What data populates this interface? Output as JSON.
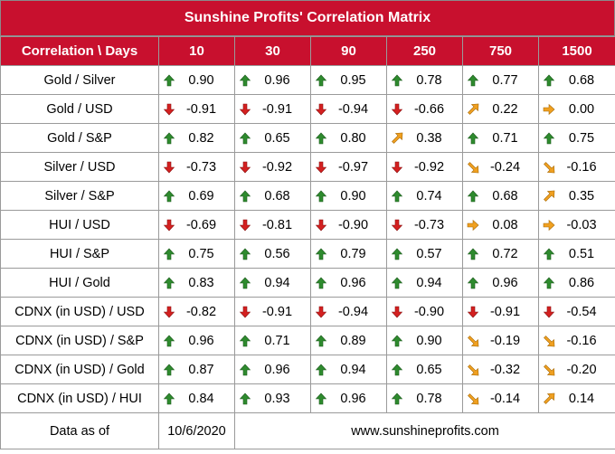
{
  "title": "Sunshine Profits' Correlation Matrix",
  "header": {
    "label": "Correlation \\ Days",
    "days": [
      "10",
      "30",
      "90",
      "250",
      "750",
      "1500"
    ]
  },
  "colors": {
    "accent": "#c8102e",
    "up": "#2e8b2e",
    "down": "#d42020",
    "diagonal": "#f0a020"
  },
  "rows": [
    {
      "label": "Gold / Silver",
      "cells": [
        {
          "icon": "arrow-up-icon",
          "value": "0.90"
        },
        {
          "icon": "arrow-up-icon",
          "value": "0.96"
        },
        {
          "icon": "arrow-up-icon",
          "value": "0.95"
        },
        {
          "icon": "arrow-up-icon",
          "value": "0.78"
        },
        {
          "icon": "arrow-up-icon",
          "value": "0.77"
        },
        {
          "icon": "arrow-up-icon",
          "value": "0.68"
        }
      ]
    },
    {
      "label": "Gold / USD",
      "cells": [
        {
          "icon": "arrow-down-icon",
          "value": "-0.91"
        },
        {
          "icon": "arrow-down-icon",
          "value": "-0.91"
        },
        {
          "icon": "arrow-down-icon",
          "value": "-0.94"
        },
        {
          "icon": "arrow-down-icon",
          "value": "-0.66"
        },
        {
          "icon": "arrow-up-right-icon",
          "value": "0.22"
        },
        {
          "icon": "arrow-right-icon",
          "value": "0.00"
        }
      ]
    },
    {
      "label": "Gold / S&P",
      "cells": [
        {
          "icon": "arrow-up-icon",
          "value": "0.82"
        },
        {
          "icon": "arrow-up-icon",
          "value": "0.65"
        },
        {
          "icon": "arrow-up-icon",
          "value": "0.80"
        },
        {
          "icon": "arrow-up-right-icon",
          "value": "0.38"
        },
        {
          "icon": "arrow-up-icon",
          "value": "0.71"
        },
        {
          "icon": "arrow-up-icon",
          "value": "0.75"
        }
      ]
    },
    {
      "label": "Silver / USD",
      "cells": [
        {
          "icon": "arrow-down-icon",
          "value": "-0.73"
        },
        {
          "icon": "arrow-down-icon",
          "value": "-0.92"
        },
        {
          "icon": "arrow-down-icon",
          "value": "-0.97"
        },
        {
          "icon": "arrow-down-icon",
          "value": "-0.92"
        },
        {
          "icon": "arrow-down-right-icon",
          "value": "-0.24"
        },
        {
          "icon": "arrow-down-right-icon",
          "value": "-0.16"
        }
      ]
    },
    {
      "label": "Silver / S&P",
      "cells": [
        {
          "icon": "arrow-up-icon",
          "value": "0.69"
        },
        {
          "icon": "arrow-up-icon",
          "value": "0.68"
        },
        {
          "icon": "arrow-up-icon",
          "value": "0.90"
        },
        {
          "icon": "arrow-up-icon",
          "value": "0.74"
        },
        {
          "icon": "arrow-up-icon",
          "value": "0.68"
        },
        {
          "icon": "arrow-up-right-icon",
          "value": "0.35"
        }
      ]
    },
    {
      "label": "HUI / USD",
      "cells": [
        {
          "icon": "arrow-down-icon",
          "value": "-0.69"
        },
        {
          "icon": "arrow-down-icon",
          "value": "-0.81"
        },
        {
          "icon": "arrow-down-icon",
          "value": "-0.90"
        },
        {
          "icon": "arrow-down-icon",
          "value": "-0.73"
        },
        {
          "icon": "arrow-right-icon",
          "value": "0.08"
        },
        {
          "icon": "arrow-right-icon",
          "value": "-0.03"
        }
      ]
    },
    {
      "label": "HUI / S&P",
      "cells": [
        {
          "icon": "arrow-up-icon",
          "value": "0.75"
        },
        {
          "icon": "arrow-up-icon",
          "value": "0.56"
        },
        {
          "icon": "arrow-up-icon",
          "value": "0.79"
        },
        {
          "icon": "arrow-up-icon",
          "value": "0.57"
        },
        {
          "icon": "arrow-up-icon",
          "value": "0.72"
        },
        {
          "icon": "arrow-up-icon",
          "value": "0.51"
        }
      ]
    },
    {
      "label": "HUI / Gold",
      "cells": [
        {
          "icon": "arrow-up-icon",
          "value": "0.83"
        },
        {
          "icon": "arrow-up-icon",
          "value": "0.94"
        },
        {
          "icon": "arrow-up-icon",
          "value": "0.96"
        },
        {
          "icon": "arrow-up-icon",
          "value": "0.94"
        },
        {
          "icon": "arrow-up-icon",
          "value": "0.96"
        },
        {
          "icon": "arrow-up-icon",
          "value": "0.86"
        }
      ]
    },
    {
      "label": "CDNX (in USD) / USD",
      "cells": [
        {
          "icon": "arrow-down-icon",
          "value": "-0.82"
        },
        {
          "icon": "arrow-down-icon",
          "value": "-0.91"
        },
        {
          "icon": "arrow-down-icon",
          "value": "-0.94"
        },
        {
          "icon": "arrow-down-icon",
          "value": "-0.90"
        },
        {
          "icon": "arrow-down-icon",
          "value": "-0.91"
        },
        {
          "icon": "arrow-down-icon",
          "value": "-0.54"
        }
      ]
    },
    {
      "label": "CDNX (in USD) / S&P",
      "cells": [
        {
          "icon": "arrow-up-icon",
          "value": "0.96"
        },
        {
          "icon": "arrow-up-icon",
          "value": "0.71"
        },
        {
          "icon": "arrow-up-icon",
          "value": "0.89"
        },
        {
          "icon": "arrow-up-icon",
          "value": "0.90"
        },
        {
          "icon": "arrow-down-right-icon",
          "value": "-0.19"
        },
        {
          "icon": "arrow-down-right-icon",
          "value": "-0.16"
        }
      ]
    },
    {
      "label": "CDNX (in USD) / Gold",
      "cells": [
        {
          "icon": "arrow-up-icon",
          "value": "0.87"
        },
        {
          "icon": "arrow-up-icon",
          "value": "0.96"
        },
        {
          "icon": "arrow-up-icon",
          "value": "0.94"
        },
        {
          "icon": "arrow-up-icon",
          "value": "0.65"
        },
        {
          "icon": "arrow-down-right-icon",
          "value": "-0.32"
        },
        {
          "icon": "arrow-down-right-icon",
          "value": "-0.20"
        }
      ]
    },
    {
      "label": "CDNX (in USD) / HUI",
      "cells": [
        {
          "icon": "arrow-up-icon",
          "value": "0.84"
        },
        {
          "icon": "arrow-up-icon",
          "value": "0.93"
        },
        {
          "icon": "arrow-up-icon",
          "value": "0.96"
        },
        {
          "icon": "arrow-up-icon",
          "value": "0.78"
        },
        {
          "icon": "arrow-down-right-icon",
          "value": "-0.14"
        },
        {
          "icon": "arrow-up-right-icon",
          "value": "0.14"
        }
      ]
    }
  ],
  "footer": {
    "label": "Data as of",
    "date": "10/6/2020",
    "website": "www.sunshineprofits.com"
  }
}
